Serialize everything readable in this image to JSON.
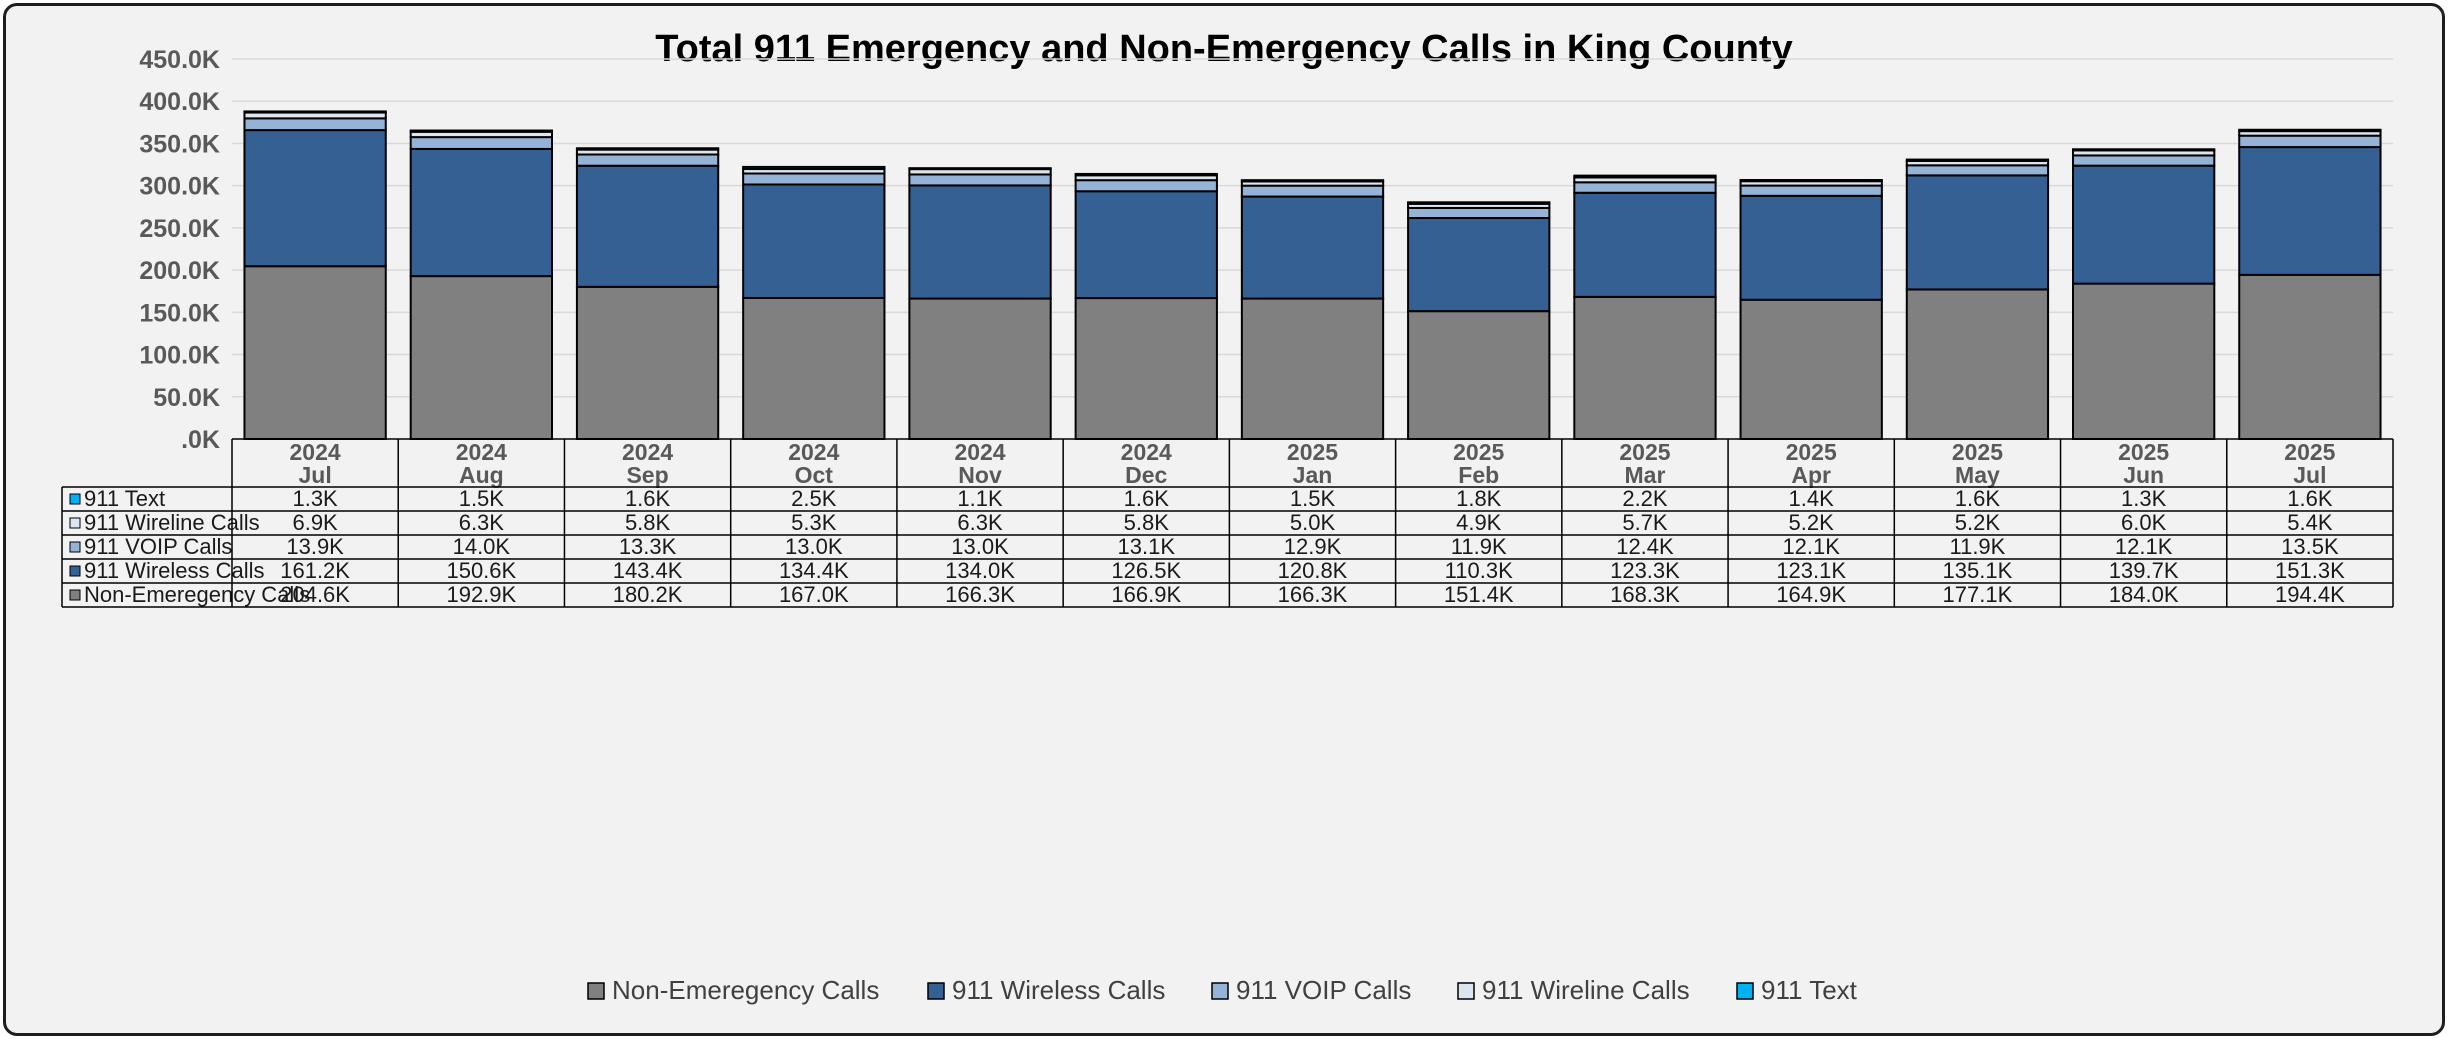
{
  "chart_data": {
    "type": "bar",
    "stacked": true,
    "title": "Total 911 Emergency and Non-Emergency Calls in King County",
    "xlabel": "",
    "ylabel": "",
    "ylim": [
      0,
      450000
    ],
    "y_ticks": [
      ".0K",
      "50.0K",
      "100.0K",
      "150.0K",
      "200.0K",
      "250.0K",
      "300.0K",
      "350.0K",
      "400.0K",
      "450.0K"
    ],
    "grid": true,
    "legend_position": "bottom",
    "categories": [
      {
        "year": "2024",
        "month": "Jul"
      },
      {
        "year": "2024",
        "month": "Aug"
      },
      {
        "year": "2024",
        "month": "Sep"
      },
      {
        "year": "2024",
        "month": "Oct"
      },
      {
        "year": "2024",
        "month": "Nov"
      },
      {
        "year": "2024",
        "month": "Dec"
      },
      {
        "year": "2025",
        "month": "Jan"
      },
      {
        "year": "2025",
        "month": "Feb"
      },
      {
        "year": "2025",
        "month": "Mar"
      },
      {
        "year": "2025",
        "month": "Apr"
      },
      {
        "year": "2025",
        "month": "May"
      },
      {
        "year": "2025",
        "month": "Jun"
      },
      {
        "year": "2025",
        "month": "Jul"
      }
    ],
    "series": [
      {
        "name": "Non-Emeregency Calls",
        "color": "#808080",
        "values": [
          204600,
          192900,
          180200,
          167000,
          166300,
          166900,
          166300,
          151400,
          168300,
          164900,
          177100,
          184000,
          194400
        ],
        "labels": [
          "204.6K",
          "192.9K",
          "180.2K",
          "167.0K",
          "166.3K",
          "166.9K",
          "166.3K",
          "151.4K",
          "168.3K",
          "164.9K",
          "177.1K",
          "184.0K",
          "194.4K"
        ]
      },
      {
        "name": "911 Wireless Calls",
        "color": "#346094",
        "values": [
          161200,
          150600,
          143400,
          134400,
          134000,
          126500,
          120800,
          110300,
          123300,
          123100,
          135100,
          139700,
          151300
        ],
        "labels": [
          "161.2K",
          "150.6K",
          "143.4K",
          "134.4K",
          "134.0K",
          "126.5K",
          "120.8K",
          "110.3K",
          "123.3K",
          "123.1K",
          "135.1K",
          "139.7K",
          "151.3K"
        ]
      },
      {
        "name": "911 VOIP Calls",
        "color": "#95b3d7",
        "values": [
          13900,
          14000,
          13300,
          13000,
          13000,
          13100,
          12900,
          11900,
          12400,
          12100,
          11900,
          12100,
          13500
        ],
        "labels": [
          "13.9K",
          "14.0K",
          "13.3K",
          "13.0K",
          "13.0K",
          "13.1K",
          "12.9K",
          "11.9K",
          "12.4K",
          "12.1K",
          "11.9K",
          "12.1K",
          "13.5K"
        ]
      },
      {
        "name": "911 Wireline Calls",
        "color": "#dce6f1",
        "values": [
          6900,
          6300,
          5800,
          5300,
          6300,
          5800,
          5000,
          4900,
          5700,
          5200,
          5200,
          6000,
          5400
        ],
        "labels": [
          "6.9K",
          "6.3K",
          "5.8K",
          "5.3K",
          "6.3K",
          "5.8K",
          "5.0K",
          "4.9K",
          "5.7K",
          "5.2K",
          "5.2K",
          "6.0K",
          "5.4K"
        ]
      },
      {
        "name": "911 Text",
        "color": "#00b0f0",
        "values": [
          1300,
          1500,
          1600,
          2500,
          1100,
          1600,
          1500,
          1800,
          2200,
          1400,
          1600,
          1300,
          1600
        ],
        "labels": [
          "1.3K",
          "1.5K",
          "1.6K",
          "2.5K",
          "1.1K",
          "1.6K",
          "1.5K",
          "1.8K",
          "2.2K",
          "1.4K",
          "1.6K",
          "1.3K",
          "1.6K"
        ]
      }
    ]
  }
}
